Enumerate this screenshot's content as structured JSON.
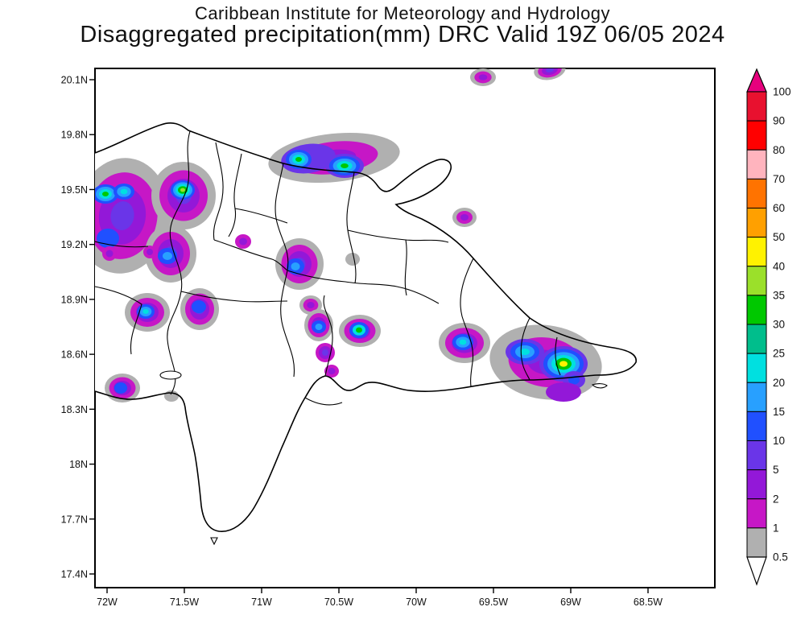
{
  "header": {
    "line1": "Caribbean Institute for Meteorology and Hydrology",
    "line2": "Disaggregated precipitation(mm) DRC Valid 19Z 06/05 2024"
  },
  "chart_data": {
    "type": "heatmap",
    "title": "Disaggregated precipitation(mm) DRC Valid 19Z 06/05 2024",
    "institution": "Caribbean Institute for Meteorology and Hydrology",
    "product": "Disaggregated precipitation",
    "units": "mm",
    "region_label": "DRC",
    "valid_time": "19Z 06/05 2024",
    "x_ticks": [
      "72W",
      "71.5W",
      "71W",
      "70.5W",
      "70W",
      "69.5W",
      "69W",
      "68.5W"
    ],
    "y_ticks": [
      "20.1N",
      "19.8N",
      "19.5N",
      "19.2N",
      "18.9N",
      "18.6N",
      "18.3N",
      "18N",
      "17.7N",
      "17.4N"
    ],
    "grid": false,
    "legend_position": "vertical-right",
    "colorbar": {
      "boundary_labels": [
        "100",
        "90",
        "80",
        "70",
        "60",
        "50",
        "40",
        "35",
        "30",
        "25",
        "20",
        "15",
        "10",
        "5",
        "2",
        "1",
        "0.5"
      ],
      "segment_colors_top_to_bottom": [
        "#e8112f",
        "#ff0000",
        "#ffb4be",
        "#ff7300",
        "#ffa000",
        "#fff200",
        "#9be02a",
        "#00c800",
        "#00be8c",
        "#00e0e0",
        "#28a0ff",
        "#2050ff",
        "#6a35e8",
        "#9318d8",
        "#c617c6",
        "#b0b0b0"
      ],
      "above_max_color": "#e6007d",
      "below_min_color": "#ffffff"
    },
    "level_colors": {
      "0.5": "#b0b0b0",
      "1": "#c617c6",
      "2": "#9318d8",
      "5": "#6a35e8",
      "10": "#2050ff",
      "15": "#28a0ff",
      "20": "#00e0e0",
      "25": "#00be8c",
      "30": "#00c800",
      "35": "#9be02a",
      "40": "#fff200"
    },
    "cells": [
      {
        "x": 600,
        "y": 96,
        "rx": 16,
        "ry": 11,
        "rot": 0,
        "levels": [
          "0.5",
          "1",
          "2"
        ]
      },
      {
        "x": 683,
        "y": 87,
        "rx": 20,
        "ry": 12,
        "rot": -12,
        "levels": [
          "0.5",
          "1",
          "2",
          "5"
        ]
      },
      {
        "x": 415,
        "y": 196,
        "rx": 82,
        "ry": 30,
        "rot": -6,
        "levels": [
          "0.5",
          "1",
          "2"
        ]
      },
      {
        "x": 383,
        "y": 197,
        "rx": 34,
        "ry": 18,
        "rot": -8,
        "levels": [
          "5"
        ]
      },
      {
        "x": 371,
        "y": 198,
        "rx": 16,
        "ry": 12,
        "rot": 0,
        "levels": [
          "10",
          "15",
          "20",
          "30"
        ]
      },
      {
        "x": 428,
        "y": 206,
        "rx": 24,
        "ry": 15,
        "rot": 0,
        "levels": [
          "5",
          "10",
          "15",
          "20",
          "30"
        ]
      },
      {
        "x": 152,
        "y": 268,
        "rx": 58,
        "ry": 72,
        "rot": 8,
        "levels": [
          "0.5",
          "1",
          "2",
          "5"
        ]
      },
      {
        "x": 131,
        "y": 241,
        "rx": 16,
        "ry": 12,
        "rot": 0,
        "levels": [
          "10",
          "15",
          "20",
          "30"
        ]
      },
      {
        "x": 154,
        "y": 238,
        "rx": 13,
        "ry": 10,
        "rot": 0,
        "levels": [
          "10",
          "15",
          "20"
        ]
      },
      {
        "x": 134,
        "y": 296,
        "rx": 14,
        "ry": 12,
        "rot": 0,
        "levels": [
          "10"
        ]
      },
      {
        "x": 228,
        "y": 243,
        "rx": 40,
        "ry": 42,
        "rot": 0,
        "levels": [
          "0.5",
          "1",
          "2",
          "5"
        ]
      },
      {
        "x": 227,
        "y": 236,
        "rx": 15,
        "ry": 12,
        "rot": 0,
        "levels": [
          "10",
          "15",
          "20",
          "30",
          "35"
        ]
      },
      {
        "x": 212,
        "y": 315,
        "rx": 32,
        "ry": 36,
        "rot": 0,
        "levels": [
          "0.5",
          "1",
          "2",
          "5"
        ]
      },
      {
        "x": 208,
        "y": 318,
        "rx": 12,
        "ry": 10,
        "rot": 0,
        "levels": [
          "10",
          "15"
        ]
      },
      {
        "x": 136,
        "y": 315,
        "rx": 9,
        "ry": 9,
        "rot": 45,
        "levels": [
          "1",
          "2"
        ]
      },
      {
        "x": 186,
        "y": 313,
        "rx": 8,
        "ry": 8,
        "rot": 45,
        "levels": [
          "1",
          "2"
        ]
      },
      {
        "x": 302,
        "y": 300,
        "rx": 10,
        "ry": 9,
        "rot": 0,
        "levels": [
          "1",
          "2"
        ]
      },
      {
        "x": 372,
        "y": 328,
        "rx": 30,
        "ry": 32,
        "rot": 0,
        "levels": [
          "0.5",
          "1",
          "2",
          "5"
        ]
      },
      {
        "x": 367,
        "y": 331,
        "rx": 11,
        "ry": 10,
        "rot": 0,
        "levels": [
          "10",
          "15"
        ]
      },
      {
        "x": 438,
        "y": 322,
        "rx": 9,
        "ry": 8,
        "rot": 0,
        "levels": [
          "0.5"
        ]
      },
      {
        "x": 577,
        "y": 270,
        "rx": 15,
        "ry": 12,
        "rot": 0,
        "levels": [
          "0.5",
          "1",
          "2"
        ]
      },
      {
        "x": 183,
        "y": 388,
        "rx": 28,
        "ry": 24,
        "rot": 0,
        "levels": [
          "0.5",
          "1",
          "2",
          "5"
        ]
      },
      {
        "x": 181,
        "y": 387,
        "rx": 11,
        "ry": 9,
        "rot": 0,
        "levels": [
          "10",
          "15",
          "20"
        ]
      },
      {
        "x": 248,
        "y": 384,
        "rx": 24,
        "ry": 26,
        "rot": 0,
        "levels": [
          "0.5",
          "1",
          "2",
          "5"
        ]
      },
      {
        "x": 247,
        "y": 381,
        "rx": 9,
        "ry": 8,
        "rot": 0,
        "levels": [
          "10"
        ]
      },
      {
        "x": 386,
        "y": 379,
        "rx": 14,
        "ry": 12,
        "rot": 0,
        "levels": [
          "0.5",
          "1",
          "2"
        ]
      },
      {
        "x": 396,
        "y": 404,
        "rx": 18,
        "ry": 20,
        "rot": 0,
        "levels": [
          "0.5",
          "1",
          "2",
          "5"
        ]
      },
      {
        "x": 396,
        "y": 406,
        "rx": 9,
        "ry": 8,
        "rot": 0,
        "levels": [
          "10",
          "15"
        ]
      },
      {
        "x": 404,
        "y": 438,
        "rx": 12,
        "ry": 12,
        "rot": 0,
        "levels": [
          "1",
          "2",
          "5"
        ]
      },
      {
        "x": 412,
        "y": 461,
        "rx": 9,
        "ry": 8,
        "rot": 0,
        "levels": [
          "1",
          "2"
        ]
      },
      {
        "x": 447,
        "y": 411,
        "rx": 26,
        "ry": 20,
        "rot": 0,
        "levels": [
          "0.5",
          "1",
          "2",
          "5"
        ]
      },
      {
        "x": 446,
        "y": 410,
        "rx": 12,
        "ry": 10,
        "rot": 0,
        "levels": [
          "10",
          "20",
          "30"
        ]
      },
      {
        "x": 152,
        "y": 482,
        "rx": 22,
        "ry": 18,
        "rot": 0,
        "levels": [
          "0.5",
          "1",
          "2",
          "5"
        ]
      },
      {
        "x": 150,
        "y": 482,
        "rx": 8,
        "ry": 7,
        "rot": 0,
        "levels": [
          "10"
        ]
      },
      {
        "x": 213,
        "y": 492,
        "rx": 9,
        "ry": 7,
        "rot": 0,
        "levels": [
          "0.5"
        ]
      },
      {
        "x": 577,
        "y": 426,
        "rx": 32,
        "ry": 25,
        "rot": 0,
        "levels": [
          "0.5",
          "1",
          "2",
          "5"
        ]
      },
      {
        "x": 575,
        "y": 425,
        "rx": 13,
        "ry": 10,
        "rot": 0,
        "levels": [
          "10",
          "15",
          "20"
        ]
      },
      {
        "x": 678,
        "y": 450,
        "rx": 70,
        "ry": 46,
        "rot": 8,
        "levels": [
          "0.5",
          "1",
          "2"
        ]
      },
      {
        "x": 652,
        "y": 437,
        "rx": 24,
        "ry": 16,
        "rot": 0,
        "levels": [
          "5",
          "10",
          "15",
          "20"
        ]
      },
      {
        "x": 700,
        "y": 452,
        "rx": 30,
        "ry": 22,
        "rot": 0,
        "levels": [
          "5",
          "10",
          "15",
          "20",
          "30",
          "40"
        ]
      },
      {
        "x": 713,
        "y": 472,
        "rx": 14,
        "ry": 11,
        "rot": 0,
        "levels": [
          "5",
          "10"
        ]
      },
      {
        "x": 700,
        "y": 487,
        "rx": 22,
        "ry": 12,
        "rot": 0,
        "levels": [
          "2"
        ]
      }
    ]
  }
}
